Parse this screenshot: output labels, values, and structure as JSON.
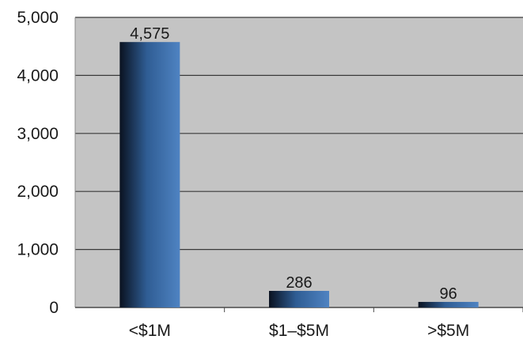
{
  "chart_data": {
    "type": "bar",
    "categories": [
      "<$1M",
      "$1–$5M",
      ">$5M"
    ],
    "values": [
      4575,
      286,
      96
    ],
    "data_labels": [
      "4,575",
      "286",
      "96"
    ],
    "ylim": [
      0,
      5000
    ],
    "yticks": [
      0,
      1000,
      2000,
      3000,
      4000,
      5000
    ],
    "ytick_labels": [
      "0",
      "1,000",
      "2,000",
      "3,000",
      "4,000",
      "5,000"
    ],
    "grid": true,
    "legend": "none",
    "colors": {
      "plot_background": "#c4c4c4",
      "bar_dark": "#0a1220",
      "bar_mid": "#2f5d94",
      "bar_light": "#4f83c2",
      "gridline": "#3a3a3a"
    }
  }
}
